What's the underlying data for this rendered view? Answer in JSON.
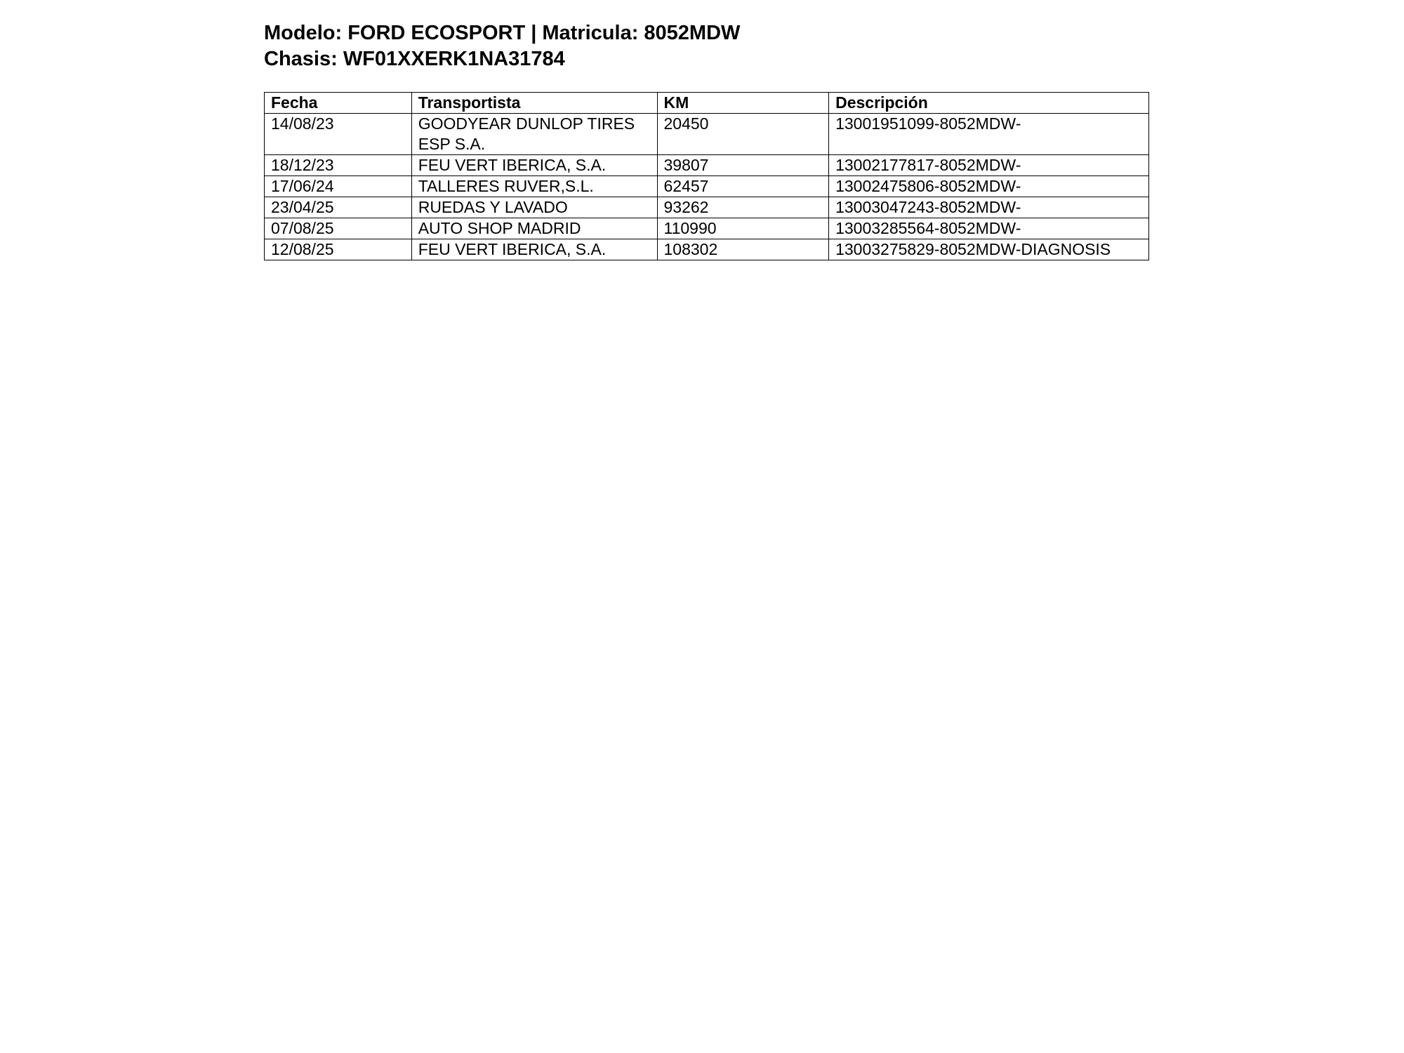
{
  "header": {
    "line1": "Modelo: FORD ECOSPORT | Matricula: 8052MDW",
    "line2": "Chasis: WF01XXERK1NA31784"
  },
  "table": {
    "columns": [
      "Fecha",
      "Transportista",
      "KM",
      "Descripción"
    ],
    "rows": [
      [
        "14/08/23",
        "GOODYEAR DUNLOP TIRES ESP S.A.",
        "20450",
        "13001951099-8052MDW-"
      ],
      [
        "18/12/23",
        "FEU VERT IBERICA, S.A.",
        "39807",
        "13002177817-8052MDW-"
      ],
      [
        "17/06/24",
        "TALLERES RUVER,S.L.",
        "62457",
        "13002475806-8052MDW-"
      ],
      [
        "23/04/25",
        "RUEDAS Y LAVADO",
        "93262",
        "13003047243-8052MDW-"
      ],
      [
        "07/08/25",
        "AUTO SHOP MADRID",
        "110990",
        "13003285564-8052MDW-"
      ],
      [
        "12/08/25",
        "FEU VERT IBERICA, S.A.",
        "108302",
        "13003275829-8052MDW-DIAGNOSIS"
      ]
    ]
  }
}
